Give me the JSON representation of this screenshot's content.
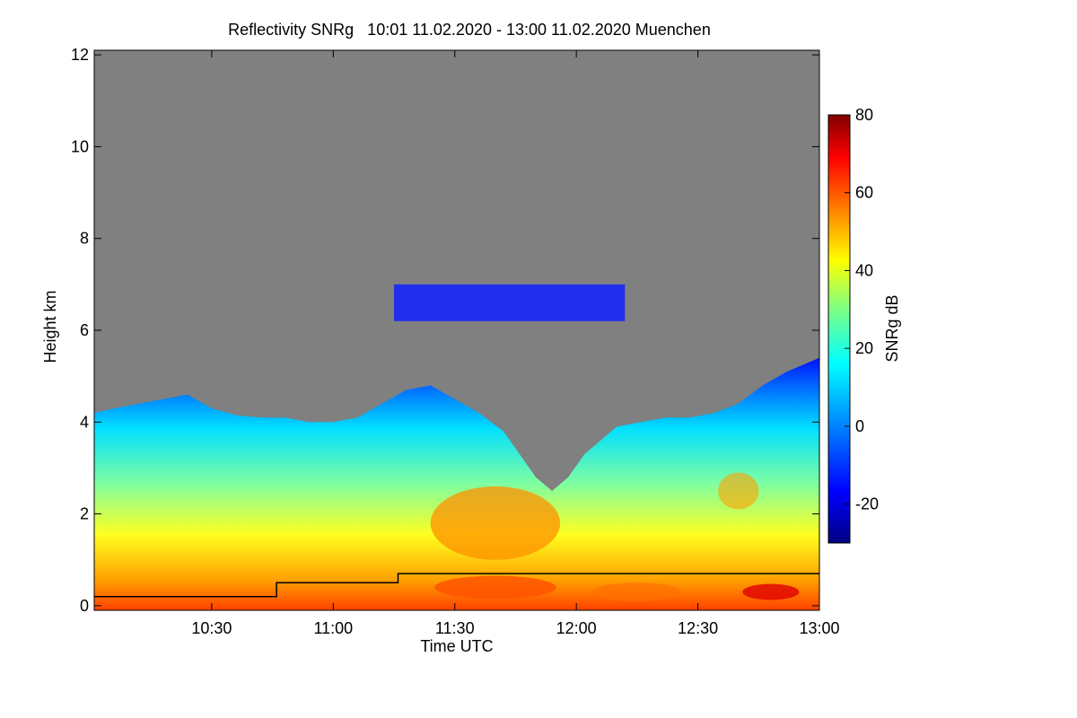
{
  "chart_data": {
    "type": "heatmap",
    "title": "Reflectivity SNRg   10:01 11.02.2020 - 13:00 11.02.2020 Muenchen",
    "xlabel": "Time UTC",
    "ylabel": "Height km",
    "colorbar_label": "SNRg dB",
    "x_range_minutes_utc": [
      601,
      780
    ],
    "x_ticks": [
      {
        "value": 630,
        "label": "10:30"
      },
      {
        "value": 660,
        "label": "11:00"
      },
      {
        "value": 690,
        "label": "11:30"
      },
      {
        "value": 720,
        "label": "12:00"
      },
      {
        "value": 750,
        "label": "12:30"
      },
      {
        "value": 780,
        "label": "13:00"
      }
    ],
    "y_range_km": [
      -0.1,
      12.1
    ],
    "y_ticks": [
      {
        "value": 0,
        "label": "0"
      },
      {
        "value": 2,
        "label": "2"
      },
      {
        "value": 4,
        "label": "4"
      },
      {
        "value": 6,
        "label": "6"
      },
      {
        "value": 8,
        "label": "8"
      },
      {
        "value": 10,
        "label": "10"
      },
      {
        "value": 12,
        "label": "12"
      }
    ],
    "colorbar_range_db": [
      -30,
      80
    ],
    "colorbar_ticks": [
      {
        "value": -20,
        "label": "-20"
      },
      {
        "value": 0,
        "label": "0"
      },
      {
        "value": 20,
        "label": "20"
      },
      {
        "value": 40,
        "label": "40"
      },
      {
        "value": 60,
        "label": "60"
      },
      {
        "value": 80,
        "label": "80"
      }
    ],
    "colormap": [
      "#000080",
      "#0000ff",
      "#0080ff",
      "#00ffff",
      "#80ff80",
      "#ffff00",
      "#ff8000",
      "#ff0000",
      "#800000"
    ],
    "no_signal_color": "#808080",
    "cloud_top_km": [
      [
        601,
        4.2
      ],
      [
        606,
        4.3
      ],
      [
        612,
        4.4
      ],
      [
        618,
        4.5
      ],
      [
        624,
        4.6
      ],
      [
        630,
        4.3
      ],
      [
        636,
        4.15
      ],
      [
        642,
        4.1
      ],
      [
        648,
        4.1
      ],
      [
        654,
        4.0
      ],
      [
        660,
        4.0
      ],
      [
        666,
        4.1
      ],
      [
        672,
        4.4
      ],
      [
        678,
        4.7
      ],
      [
        684,
        4.8
      ],
      [
        690,
        4.5
      ],
      [
        696,
        4.2
      ],
      [
        702,
        3.8
      ],
      [
        706,
        3.3
      ],
      [
        710,
        2.8
      ],
      [
        714,
        2.5
      ],
      [
        718,
        2.8
      ],
      [
        722,
        3.3
      ],
      [
        726,
        3.6
      ],
      [
        730,
        3.9
      ],
      [
        736,
        4.0
      ],
      [
        742,
        4.1
      ],
      [
        748,
        4.1
      ],
      [
        754,
        4.2
      ],
      [
        760,
        4.4
      ],
      [
        766,
        4.8
      ],
      [
        772,
        5.1
      ],
      [
        780,
        5.4
      ]
    ],
    "upper_cloud_band": {
      "x_range": [
        675,
        732
      ],
      "y_range_km": [
        6.2,
        7.0
      ]
    },
    "boundary_layer_line_km": [
      [
        601,
        0.2
      ],
      [
        646,
        0.2
      ],
      [
        646,
        0.5
      ],
      [
        676,
        0.5
      ],
      [
        676,
        0.7
      ],
      [
        780,
        0.7
      ]
    ]
  }
}
